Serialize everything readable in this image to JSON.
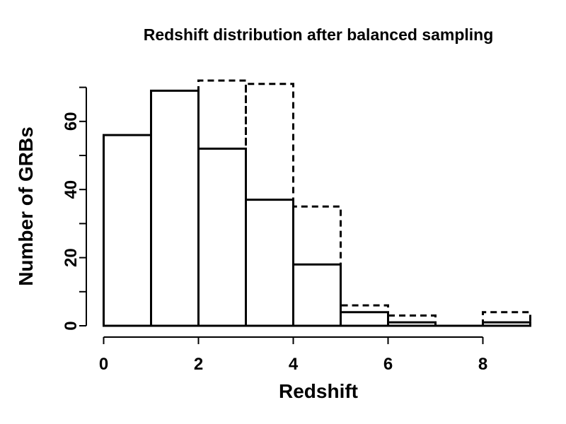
{
  "chart_data": {
    "type": "histogram",
    "title": "Redshift distribution after balanced sampling",
    "xlabel": "Redshift",
    "ylabel": "Number of GRBs",
    "series": [
      {
        "name": "solid",
        "line_style": "solid",
        "bin_edges": [
          0,
          1,
          2,
          3,
          4,
          5,
          6,
          7,
          8,
          9
        ],
        "values": [
          56,
          69,
          52,
          37,
          18,
          4,
          1,
          0,
          1
        ]
      },
      {
        "name": "dashed",
        "line_style": "dashed",
        "bin_edges": [
          2,
          3,
          4,
          5,
          6,
          7,
          8,
          9
        ],
        "values": [
          72,
          71,
          35,
          6,
          3,
          0,
          4
        ]
      }
    ],
    "xticks": {
      "values": [
        0,
        2,
        4,
        6,
        8
      ],
      "labels": [
        "0",
        "2",
        "4",
        "6",
        "8"
      ]
    },
    "yticks": {
      "values": [
        0,
        10,
        20,
        30,
        40,
        50,
        60,
        70
      ],
      "labels": [
        "0",
        "",
        "20",
        "",
        "40",
        "",
        "60",
        ""
      ]
    },
    "xlim": [
      0,
      9
    ],
    "ylim": [
      0,
      73
    ],
    "grid": false,
    "legend": null,
    "color": "#000000",
    "background": "#ffffff"
  }
}
